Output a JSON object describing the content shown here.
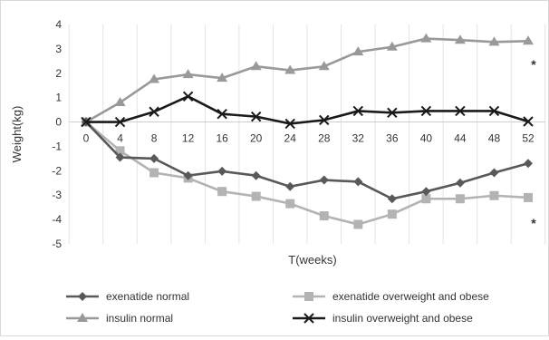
{
  "chart_data": {
    "type": "line",
    "title": "",
    "xlabel": "T(weeks)",
    "ylabel": "Weight(kg)",
    "x": [
      0,
      4,
      8,
      12,
      16,
      20,
      24,
      28,
      32,
      36,
      40,
      44,
      48,
      52
    ],
    "x_tick_labels": [
      "0",
      "4",
      "8",
      "12",
      "16",
      "20",
      "24",
      "28",
      "32",
      "36",
      "40",
      "44",
      "48",
      "52"
    ],
    "ylim": [
      -5,
      4
    ],
    "y_tick_labels": [
      "4",
      "3",
      "2",
      "1",
      "0",
      "-1",
      "-2",
      "-3",
      "-4",
      "-5"
    ],
    "grid": "vertical",
    "legend_position": "bottom",
    "series": [
      {
        "name": "exenatide normal",
        "marker": "diamond",
        "color": "#595959",
        "values": [
          0,
          -1.45,
          -1.5,
          -2.2,
          -2.02,
          -2.2,
          -2.65,
          -2.38,
          -2.45,
          -3.15,
          -2.85,
          -2.5,
          -2.08,
          -1.7
        ]
      },
      {
        "name": "exenatide overweight and obese",
        "marker": "square",
        "color": "#b3b3b3",
        "values": [
          0,
          -1.18,
          -2.08,
          -2.3,
          -2.85,
          -3.05,
          -3.35,
          -3.85,
          -4.2,
          -3.78,
          -3.15,
          -3.15,
          -3.02,
          -3.1
        ]
      },
      {
        "name": "insulin normal",
        "marker": "triangle",
        "color": "#999999",
        "values": [
          0,
          0.8,
          1.75,
          1.95,
          1.8,
          2.28,
          2.12,
          2.28,
          2.88,
          3.08,
          3.42,
          3.36,
          3.28,
          3.32
        ]
      },
      {
        "name": "insulin overweight and obese",
        "marker": "x",
        "color": "#1a1a1a",
        "values": [
          0,
          0,
          0.42,
          1.05,
          0.33,
          0.22,
          -0.07,
          0.08,
          0.45,
          0.38,
          0.45,
          0.45,
          0.45,
          0.02
        ]
      }
    ],
    "annotations": [
      {
        "text": "*",
        "x": 52,
        "y": 2.4
      },
      {
        "text": "*",
        "x": 52,
        "y": -4.1
      }
    ]
  }
}
